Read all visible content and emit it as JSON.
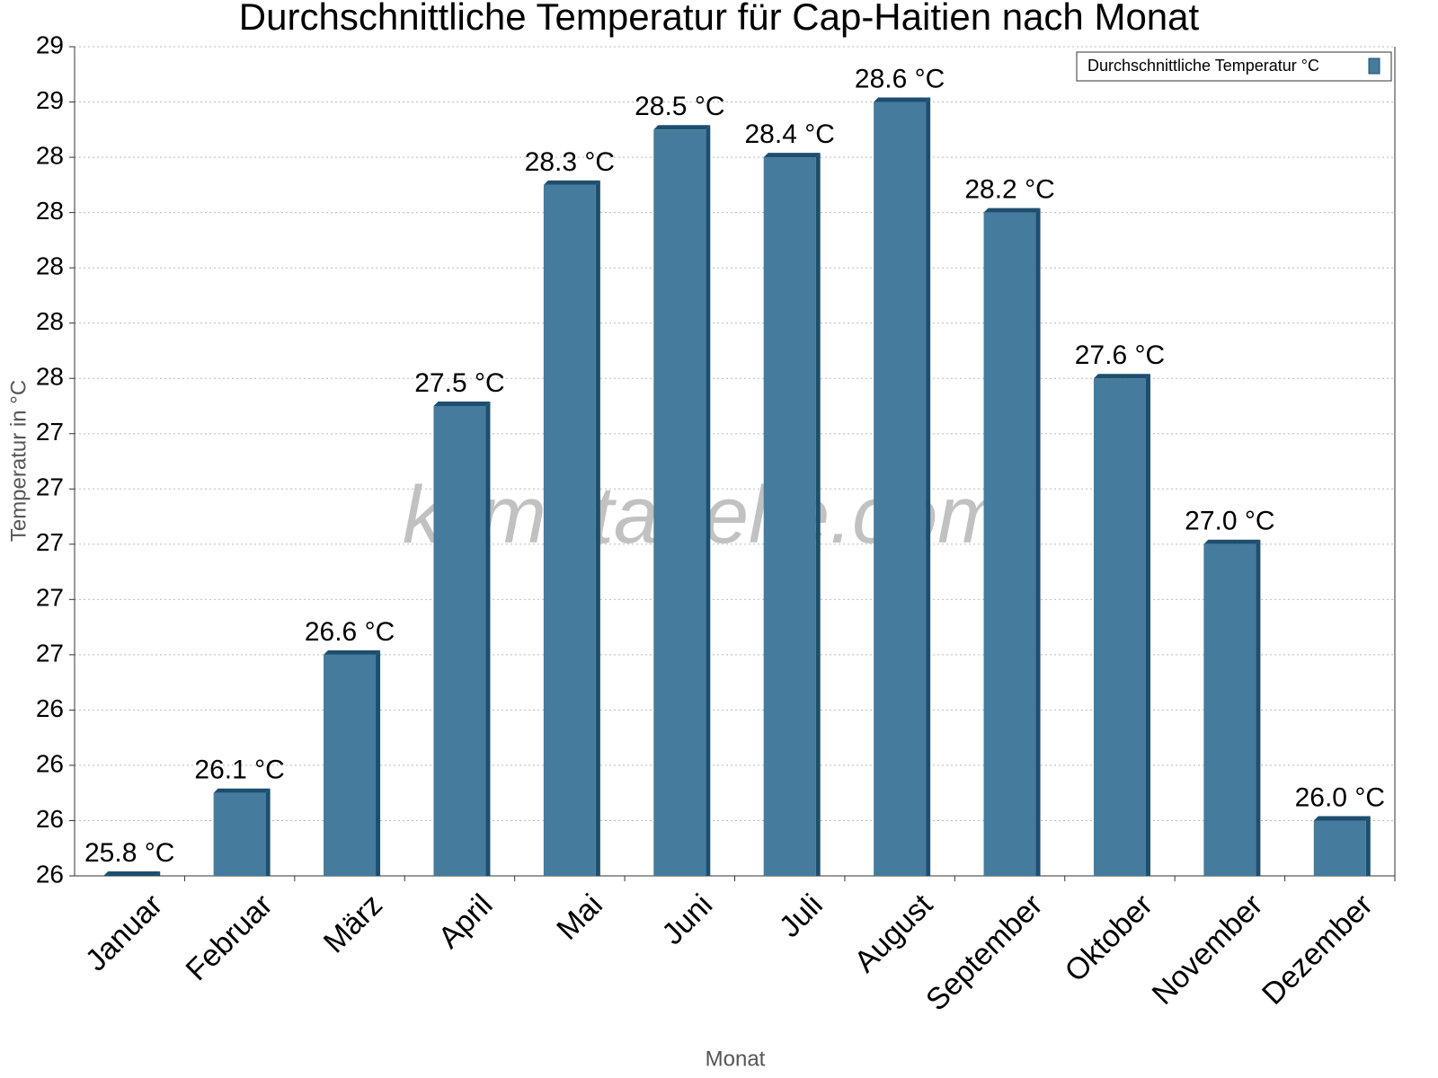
{
  "chart_data": {
    "type": "bar",
    "title": "Durchschnittliche Temperatur für Cap-Haitien nach Monat",
    "y_label": "Temperatur in °C",
    "x_label": "Monat",
    "watermark": "klimatabelle.com",
    "categories": [
      "Januar",
      "Februar",
      "März",
      "April",
      "Mai",
      "Juni",
      "Juli",
      "August",
      "September",
      "Oktober",
      "November",
      "Dezember"
    ],
    "series": [
      {
        "name": "Durchschnittliche Temperatur °C",
        "color": "#457b9d",
        "values": [
          25.8,
          26.1,
          26.6,
          27.5,
          28.3,
          28.5,
          28.4,
          28.6,
          28.2,
          27.6,
          27.0,
          26.0
        ],
        "value_labels": [
          "25.8 °C",
          "26.1 °C",
          "26.6 °C",
          "27.5 °C",
          "28.3 °C",
          "28.5 °C",
          "28.4 °C",
          "28.6 °C",
          "28.2 °C",
          "27.6 °C",
          "27.0 °C",
          "26.0 °C"
        ]
      }
    ],
    "ylim": [
      25.8,
      28.8
    ],
    "yticks": [
      {
        "value": 25.8,
        "label": "26"
      },
      {
        "value": 26.0,
        "label": "26"
      },
      {
        "value": 26.2,
        "label": "26"
      },
      {
        "value": 26.4,
        "label": "26"
      },
      {
        "value": 26.6,
        "label": "27"
      },
      {
        "value": 26.8,
        "label": "27"
      },
      {
        "value": 27.0,
        "label": "27"
      },
      {
        "value": 27.2,
        "label": "27"
      },
      {
        "value": 27.4,
        "label": "27"
      },
      {
        "value": 27.6,
        "label": "28"
      },
      {
        "value": 27.8,
        "label": "28"
      },
      {
        "value": 28.0,
        "label": "28"
      },
      {
        "value": 28.2,
        "label": "28"
      },
      {
        "value": 28.4,
        "label": "28"
      },
      {
        "value": 28.6,
        "label": "29"
      },
      {
        "value": 28.8,
        "label": "29"
      }
    ],
    "grid": true,
    "legend": "top-right"
  }
}
